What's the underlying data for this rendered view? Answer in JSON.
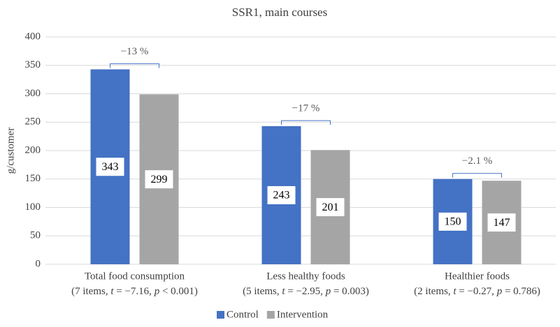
{
  "chart_data": {
    "type": "bar",
    "title": "SSR1, main courses",
    "y_label": "g/customer",
    "categories": [
      "Total food consumption",
      "Less healthy foods",
      "Healthier foods"
    ],
    "category_notes": [
      "(7 items, t = −7.16, p < 0.001)",
      "(5 items, t = −2.95, p = 0.003)",
      "(2 items, t = −0.27, p = 0.786)"
    ],
    "series": [
      {
        "name": "Control",
        "color": "#4472c4",
        "values": [
          343,
          243,
          150
        ]
      },
      {
        "name": "Intervention",
        "color": "#a5a5a5",
        "values": [
          299,
          201,
          147
        ]
      }
    ],
    "annotations": [
      "−13 %",
      "−17 %",
      "−2.1 %"
    ],
    "ylim": [
      0,
      400
    ],
    "yticks": [
      0,
      50,
      100,
      150,
      200,
      250,
      300,
      350,
      400
    ],
    "grid": true,
    "legend": "bottom"
  }
}
